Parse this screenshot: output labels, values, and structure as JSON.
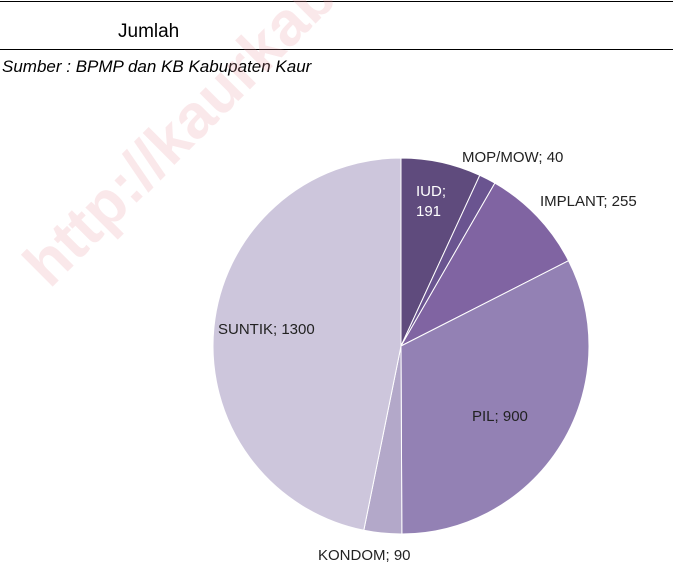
{
  "header": {
    "row_label": "Jumlah",
    "source": "Sumber : BPMP dan KB Kabupaten Kaur"
  },
  "watermark": "http://kaurkab.bps.go.id",
  "chart_data": {
    "type": "pie",
    "categories": [
      "IUD",
      "MOP/MOW",
      "IMPLANT",
      "PIL",
      "KONDOM",
      "SUNTIK"
    ],
    "values": [
      191,
      40,
      255,
      900,
      90,
      1300
    ],
    "value_labels": [
      "IUD; 191",
      "MOP/MOW; 40",
      "IMPLANT; 255",
      "PIL; 900",
      "KONDOM; 90",
      "SUNTIK; 1300"
    ],
    "colors": [
      "#5f4b7d",
      "#6a5490",
      "#8064a2",
      "#9381b4",
      "#b3a8c9",
      "#cdc6dc"
    ]
  }
}
